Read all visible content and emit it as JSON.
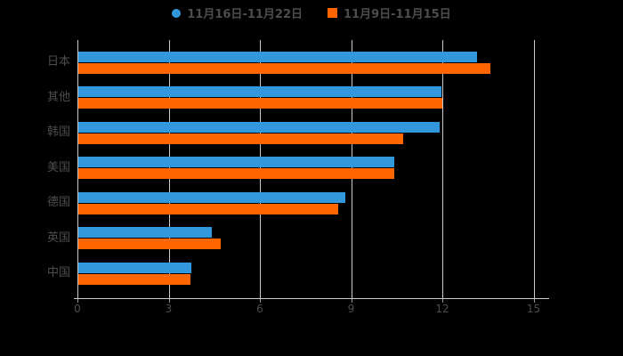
{
  "chart_data": {
    "type": "bar",
    "orientation": "horizontal",
    "title": "",
    "categories": [
      "日本",
      "其他",
      "韩国",
      "美国",
      "德国",
      "英国",
      "中国"
    ],
    "series": [
      {
        "name": "11月16日-11月22日",
        "color": "#3398DB",
        "marker": "circle",
        "values": [
          13.11,
          11.93,
          11.87,
          10.39,
          8.79,
          4.4,
          3.73
        ]
      },
      {
        "name": "11月9日-11月15日",
        "color": "#FF6600",
        "marker": "square",
        "values": [
          13.55,
          11.98,
          10.69,
          10.39,
          8.55,
          4.67,
          3.68
        ]
      }
    ],
    "xlim": [
      0,
      15
    ],
    "x_ticks": [
      "0",
      "3",
      "6",
      "9",
      "12",
      "15"
    ],
    "grid": true,
    "legend_position": "top"
  },
  "colors": {
    "background": "#000000",
    "grid_line": "#cccccc",
    "axis_line": "#cccccc",
    "tick": "#999999",
    "text": "#4d4d4d"
  }
}
